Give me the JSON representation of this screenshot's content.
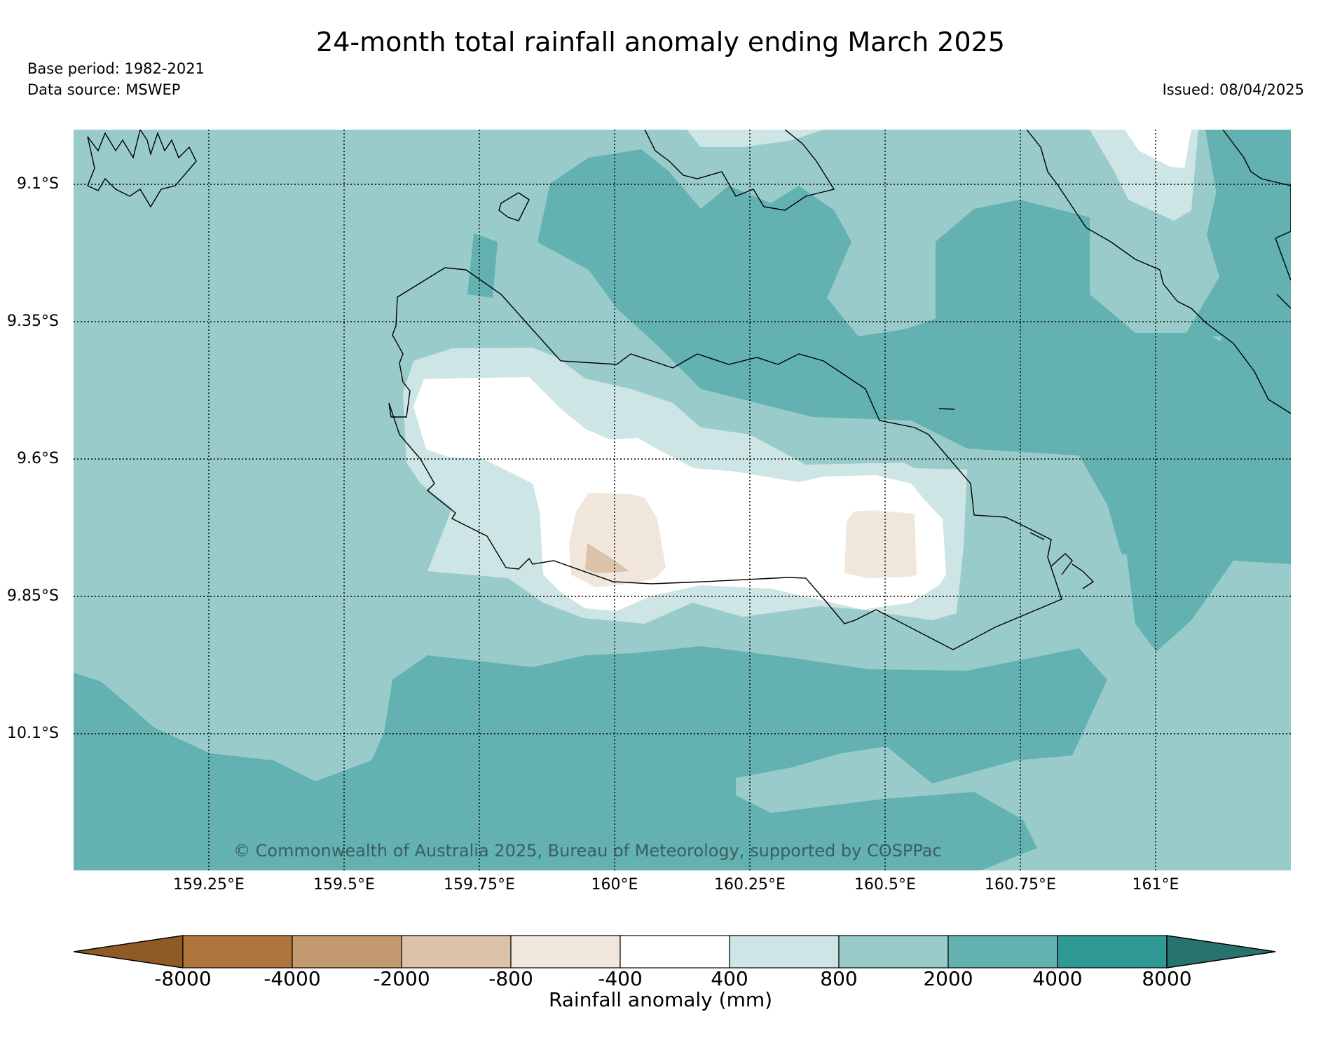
{
  "header": {
    "title": "24-month total rainfall anomaly ending March 2025",
    "base_period": "Base period: 1982-2021",
    "data_source": "Data source: MSWEP",
    "issued": "Issued: 08/04/2025"
  },
  "map": {
    "lat_labels": [
      "9.1°S",
      "9.35°S",
      "9.6°S",
      "9.85°S",
      "10.1°S"
    ],
    "lon_labels": [
      "159.25°E",
      "159.5°E",
      "159.75°E",
      "160°E",
      "160.25°E",
      "160.5°E",
      "160.75°E",
      "161°E"
    ],
    "copyright": "© Commonwealth of Australia 2025, Bureau of Meteorology, supported by COSPPac"
  },
  "colorbar": {
    "ticks": [
      "-8000",
      "-4000",
      "-2000",
      "-800",
      "-400",
      "400",
      "800",
      "2000",
      "4000",
      "8000"
    ],
    "label": "Rainfall anomaly (mm)",
    "colors": [
      "#8f5a24",
      "#ad743c",
      "#c49a70",
      "#dcc2a8",
      "#f0e6dc",
      "#ffffff",
      "#cde5e4",
      "#9acbcb",
      "#63b1b1",
      "#2f9994",
      "#27736e"
    ]
  }
}
